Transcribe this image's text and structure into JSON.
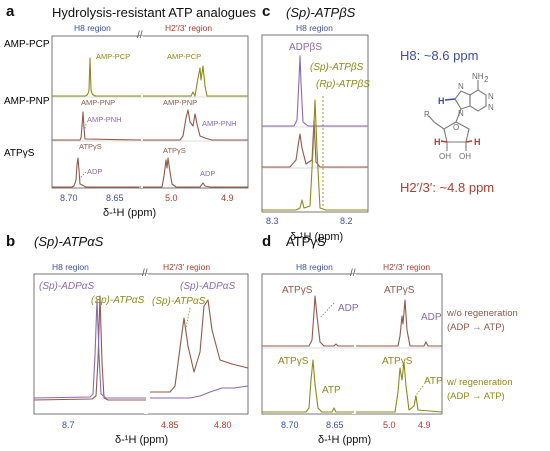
{
  "colors": {
    "olive": "#8e8a18",
    "brown": "#8f5a4a",
    "purple": "#8a6ab0",
    "blue": "#3c4fa8",
    "red": "#b43c2e",
    "text": "#111111"
  },
  "panels": {
    "a": {
      "label": "a",
      "title": "Hydrolysis-resistant ATP analogues",
      "rows": [
        "AMP-PCP",
        "AMP-PNP",
        "ATPγS"
      ],
      "regions": [
        "H8 region",
        "H2′/3′ region"
      ],
      "ann": [
        "AMP-PCP",
        "AMP-PCP",
        "AMP-PNP",
        "AMP-PNP",
        "AMP-PNH",
        "AMP-PNH",
        "ATPγS",
        "ADP",
        "ATPγS",
        "ADP"
      ],
      "ticks_left": [
        "8.70",
        "8.65"
      ],
      "ticks_right": [
        "5.0",
        "4.9"
      ],
      "xlabel": "δ-¹H (ppm)"
    },
    "b": {
      "label": "b",
      "title": "(Sp)-ATPαS",
      "regions": [
        "H8 region",
        "H2′/3′ region"
      ],
      "ann": [
        "(Sp)-ADPαS",
        "(Sp)-ATPαS",
        "(Sp)-ATPαS",
        "(Sp)-ADPαS"
      ],
      "ticks_left": [
        "8.7"
      ],
      "ticks_right": [
        "4.85",
        "4.80"
      ],
      "xlabel": "δ-¹H (ppm)"
    },
    "c": {
      "label": "c",
      "title": "(Sp)-ATPβS",
      "regions": [
        "H8 region"
      ],
      "ann": [
        "ADPβS",
        "(Sp)-ATPβS",
        "(Rp)-ATPβS"
      ],
      "ticks": [
        "8.3",
        "8.2"
      ],
      "xlabel": "δ-¹H (ppm)",
      "molecule": {
        "h8": "H8: ~8.6 ppm",
        "h23": "H2′/3′: ~4.8 ppm",
        "nh2": "NH",
        "nh2_sub": "2",
        "n": "N",
        "h": "H",
        "o": "O",
        "r": "R",
        "oh": "OH"
      }
    },
    "d": {
      "label": "d",
      "title": "ATPγS",
      "regions": [
        "H8 region",
        "H2′/3′ region"
      ],
      "ann": [
        "ATPγS",
        "ADP",
        "ATPγS",
        "ADP",
        "ATPγS",
        "ATP",
        "ATPγS",
        "ATP"
      ],
      "ticks_left": [
        "8.70",
        "8.65"
      ],
      "ticks_right": [
        "5.0",
        "4.9"
      ],
      "xlabel": "δ-¹H (ppm)",
      "legend": [
        "w/o regeneration",
        "(ADP → ATP)",
        "w/ regeneration",
        "(ADP → ATP)"
      ]
    }
  }
}
